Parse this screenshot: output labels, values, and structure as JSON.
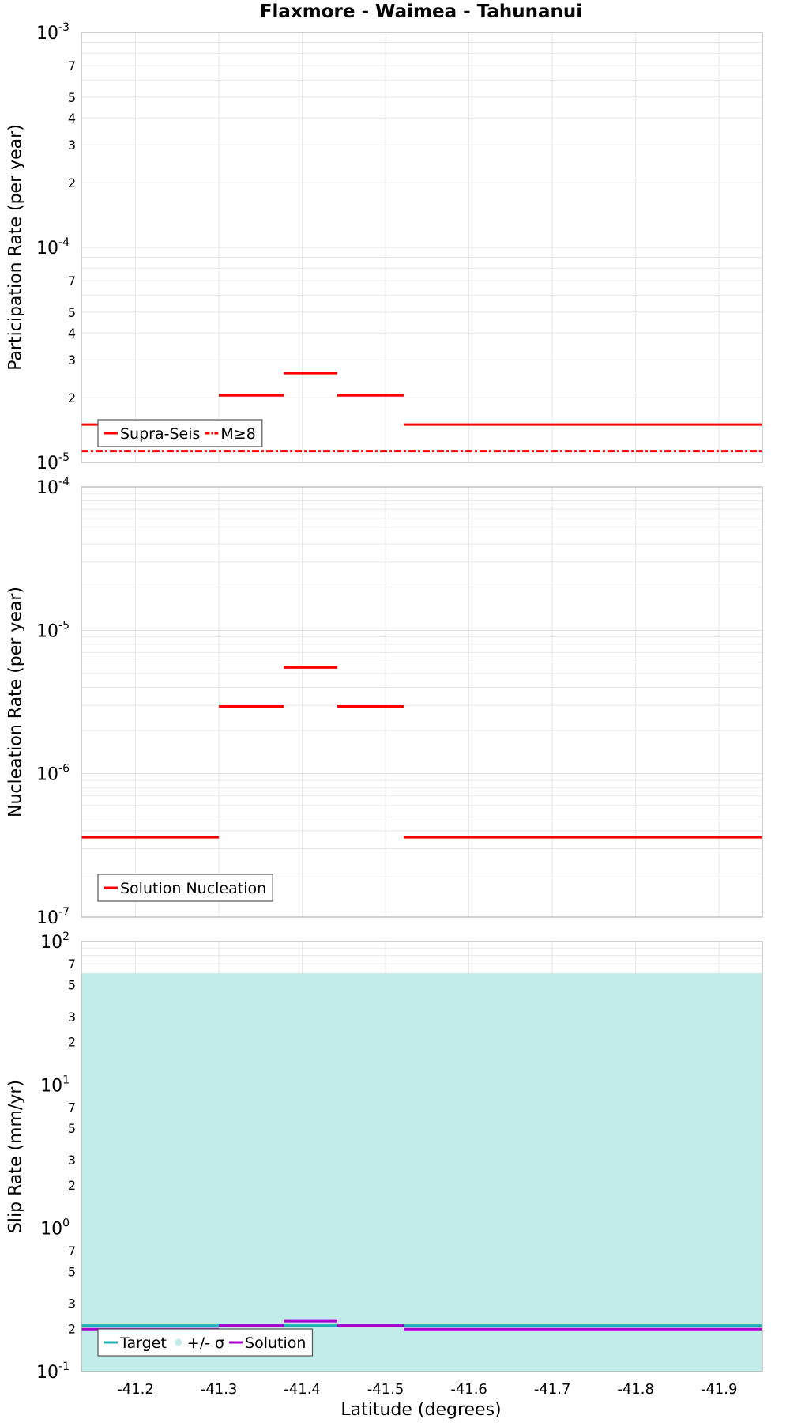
{
  "chart_data": {
    "type": "line",
    "title": "Flaxmore - Waimea - Tahunanui",
    "xlabel": "Latitude (degrees)",
    "xlim": [
      -41.135,
      -41.952
    ],
    "x_ticks": [
      -41.2,
      -41.3,
      -41.4,
      -41.5,
      -41.6,
      -41.7,
      -41.8,
      -41.9
    ],
    "x_tick_labels": [
      "-41.2",
      "-41.3",
      "-41.4",
      "-41.5",
      "-41.6",
      "-41.7",
      "-41.8",
      "-41.9"
    ],
    "colors": {
      "supra": "#ff0000",
      "target": "#20b2b2",
      "sigma": "#c2ecea",
      "solution": "#aa00cc",
      "grid": "#e8e8e8",
      "frame": "#b0b0b0"
    },
    "panels": [
      {
        "ylabel": "Participation Rate (per year)",
        "yscale": "log",
        "ylim": [
          1e-05,
          0.001
        ],
        "major_ticks": [
          {
            "v": 0.001,
            "base": "10",
            "exp": "-3"
          },
          {
            "v": 0.0001,
            "base": "10",
            "exp": "-4"
          },
          {
            "v": 1e-05,
            "base": "10",
            "exp": "-5"
          }
        ],
        "minor_ticks": [
          {
            "v": 0.0007,
            "label": "7"
          },
          {
            "v": 0.0005,
            "label": "5"
          },
          {
            "v": 0.0004,
            "label": "4"
          },
          {
            "v": 0.0003,
            "label": "3"
          },
          {
            "v": 0.0002,
            "label": "2"
          },
          {
            "v": 7e-05,
            "label": "7"
          },
          {
            "v": 5e-05,
            "label": "5"
          },
          {
            "v": 4e-05,
            "label": "4"
          },
          {
            "v": 3e-05,
            "label": "3"
          },
          {
            "v": 2e-05,
            "label": "2"
          }
        ],
        "series": [
          {
            "name": "Supra-Seis",
            "style": "solid",
            "color_key": "supra",
            "width": 3,
            "segments": [
              {
                "x0": -41.135,
                "x1": -41.3,
                "y": 1.5e-05
              },
              {
                "x0": -41.3,
                "x1": -41.378,
                "y": 2.05e-05
              },
              {
                "x0": -41.378,
                "x1": -41.442,
                "y": 2.6e-05
              },
              {
                "x0": -41.442,
                "x1": -41.522,
                "y": 2.05e-05
              },
              {
                "x0": -41.522,
                "x1": -41.952,
                "y": 1.5e-05
              }
            ]
          },
          {
            "name": "M≥8",
            "style": "dashdot",
            "color_key": "supra",
            "width": 3,
            "segments": [
              {
                "x0": -41.135,
                "x1": -41.952,
                "y": 1.13e-05
              }
            ]
          }
        ],
        "legend": {
          "position": "bottom-left",
          "entries": [
            {
              "label": "Supra-Seis",
              "style": "solid",
              "color_key": "supra"
            },
            {
              "label": "M≥8",
              "style": "dashdot",
              "color_key": "supra"
            }
          ]
        }
      },
      {
        "ylabel": "Nucleation Rate (per year)",
        "yscale": "log",
        "ylim": [
          1e-07,
          0.0001
        ],
        "major_ticks": [
          {
            "v": 0.0001,
            "base": "10",
            "exp": "-4"
          },
          {
            "v": 1e-05,
            "base": "10",
            "exp": "-5"
          },
          {
            "v": 1e-06,
            "base": "10",
            "exp": "-6"
          },
          {
            "v": 1e-07,
            "base": "10",
            "exp": "-7"
          }
        ],
        "minor_ticks": [],
        "series": [
          {
            "name": "Solution Nucleation",
            "style": "solid",
            "color_key": "supra",
            "width": 3,
            "segments": [
              {
                "x0": -41.135,
                "x1": -41.3,
                "y": 3.6e-07
              },
              {
                "x0": -41.3,
                "x1": -41.378,
                "y": 2.95e-06
              },
              {
                "x0": -41.378,
                "x1": -41.442,
                "y": 5.5e-06
              },
              {
                "x0": -41.442,
                "x1": -41.522,
                "y": 2.95e-06
              },
              {
                "x0": -41.522,
                "x1": -41.952,
                "y": 3.6e-07
              }
            ]
          }
        ],
        "legend": {
          "position": "bottom-left",
          "entries": [
            {
              "label": "Solution Nucleation",
              "style": "solid",
              "color_key": "supra"
            }
          ]
        }
      },
      {
        "ylabel": "Slip Rate (mm/yr)",
        "yscale": "log",
        "ylim": [
          0.1,
          100
        ],
        "major_ticks": [
          {
            "v": 100,
            "base": "10",
            "exp": "2"
          },
          {
            "v": 10,
            "base": "10",
            "exp": "1"
          },
          {
            "v": 1,
            "base": "10",
            "exp": "0"
          },
          {
            "v": 0.1,
            "base": "10",
            "exp": "-1"
          }
        ],
        "minor_ticks": [
          {
            "v": 70,
            "label": "7"
          },
          {
            "v": 50,
            "label": "5"
          },
          {
            "v": 30,
            "label": "3"
          },
          {
            "v": 20,
            "label": "2"
          },
          {
            "v": 7,
            "label": "7"
          },
          {
            "v": 5,
            "label": "5"
          },
          {
            "v": 3,
            "label": "3"
          },
          {
            "v": 2,
            "label": "2"
          },
          {
            "v": 0.7,
            "label": "7"
          },
          {
            "v": 0.5,
            "label": "5"
          },
          {
            "v": 0.3,
            "label": "3"
          },
          {
            "v": 0.2,
            "label": "2"
          }
        ],
        "band": {
          "name": "+/- σ",
          "color_key": "sigma",
          "x0": -41.135,
          "x1": -41.952,
          "y0": 0.1,
          "y1": 60
        },
        "series": [
          {
            "name": "Target",
            "style": "solid",
            "color_key": "target",
            "width": 3,
            "segments": [
              {
                "x0": -41.135,
                "x1": -41.952,
                "y": 0.21
              }
            ]
          },
          {
            "name": "Solution",
            "style": "solid",
            "color_key": "solution",
            "width": 3,
            "segments": [
              {
                "x0": -41.135,
                "x1": -41.3,
                "y": 0.198
              },
              {
                "x0": -41.3,
                "x1": -41.378,
                "y": 0.21
              },
              {
                "x0": -41.378,
                "x1": -41.442,
                "y": 0.225
              },
              {
                "x0": -41.442,
                "x1": -41.522,
                "y": 0.21
              },
              {
                "x0": -41.522,
                "x1": -41.952,
                "y": 0.198
              }
            ]
          }
        ],
        "legend": {
          "position": "bottom-left",
          "entries": [
            {
              "label": "Target",
              "style": "solid",
              "color_key": "target"
            },
            {
              "label": "+/- σ",
              "style": "dot",
              "color_key": "sigma"
            },
            {
              "label": "Solution",
              "style": "solid",
              "color_key": "solution"
            }
          ]
        }
      }
    ]
  }
}
